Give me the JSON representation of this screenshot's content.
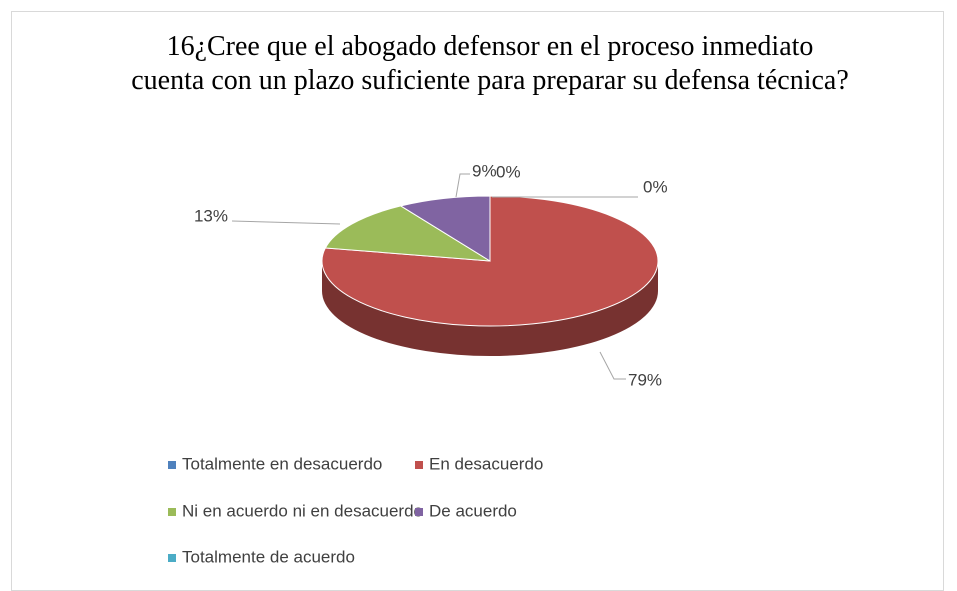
{
  "chart_data": {
    "type": "pie",
    "title": "16¿Cree que  el abogado defensor  en el proceso inmediato  cuenta con un plazo suficiente para preparar su defensa técnica?",
    "categories": [
      "Totalmente en desacuerdo",
      "En desacuerdo",
      "Ni en acuerdo ni en desacuerdo",
      "De acuerdo",
      "Totalmente de acuerdo"
    ],
    "values": [
      0,
      79,
      13,
      9,
      0
    ],
    "value_labels": [
      "0%",
      "79%",
      "13%",
      "9%",
      "0%"
    ],
    "colors": [
      "#4f81bd",
      "#c0504d",
      "#9bbb59",
      "#8064a2",
      "#4bacc6"
    ],
    "legend": "bottom"
  }
}
